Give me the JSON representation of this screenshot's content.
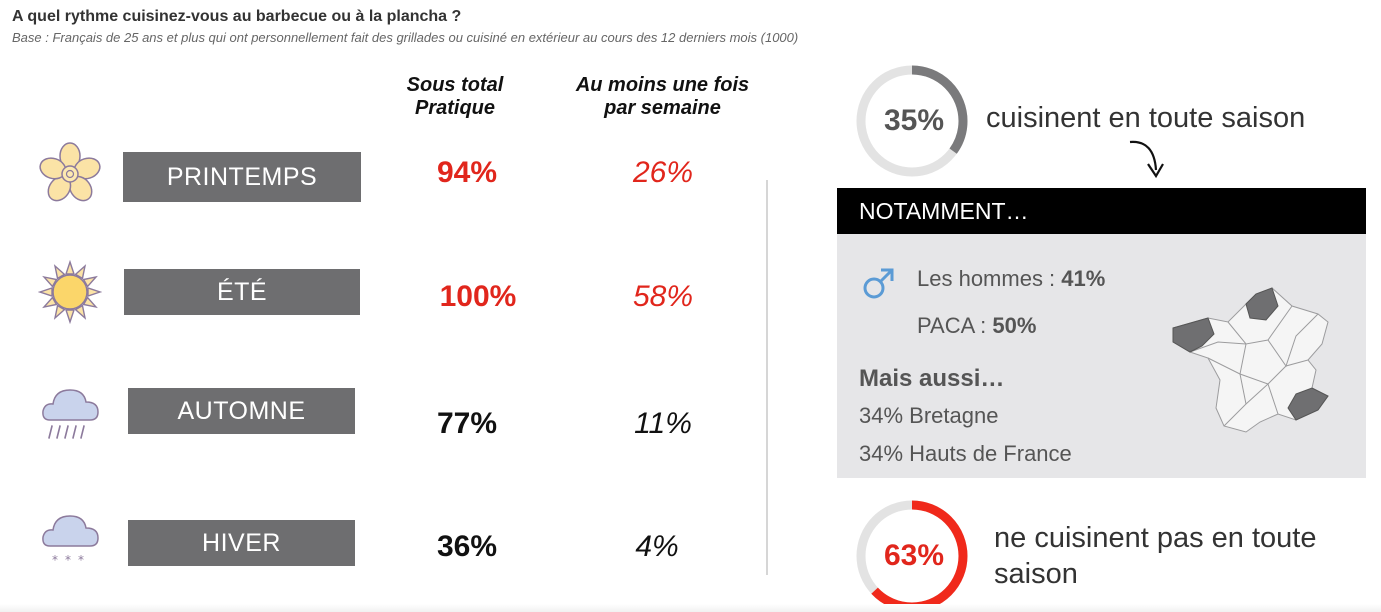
{
  "header": {
    "title": "A quel rythme cuisinez-vous au barbecue ou à la plancha ?",
    "subtitle": "Base : Français de 25 ans et plus qui ont personnellement fait des grillades ou cuisiné en extérieur au cours des 12 derniers mois (1000)"
  },
  "columns": {
    "subtotal_line1": "Sous total",
    "subtotal_line2": "Pratique",
    "weekly_line1": "Au moins une fois",
    "weekly_line2": "par semaine"
  },
  "seasons": [
    {
      "label": "PRINTEMPS",
      "subtotal": "94%",
      "weekly": "26%",
      "icon": "flower-icon",
      "highlight": true
    },
    {
      "label": "ÉTÉ",
      "subtotal": "100%",
      "weekly": "58%",
      "icon": "sun-icon",
      "highlight": true
    },
    {
      "label": "AUTOMNE",
      "subtotal": "77%",
      "weekly": "11%",
      "icon": "rain-cloud-icon",
      "highlight": false
    },
    {
      "label": "HIVER",
      "subtotal": "36%",
      "weekly": "4%",
      "icon": "snow-cloud-icon",
      "highlight": false
    }
  ],
  "all_season": {
    "percent": "35%",
    "value": 0.35,
    "text": "cuisinent en toute saison",
    "color": "#7a7a7c"
  },
  "not_all_season": {
    "percent": "63%",
    "value": 0.63,
    "text_line1": "ne cuisinent pas en toute",
    "text_line2": "saison",
    "color": "#f0291b"
  },
  "panel": {
    "heading": "NOTAMMENT…",
    "men_label": "Les hommes : ",
    "men_value": "41%",
    "paca_label": "PACA : ",
    "paca_value": "50%",
    "also_heading": "Mais aussi…",
    "also_1": "34% Bretagne",
    "also_2": "34% Hauts de France",
    "icon": "male-symbol-icon"
  },
  "colors": {
    "label_bg": "#6e6e70",
    "highlight_red": "#e1261c",
    "panel_bg": "#e6e6e8",
    "map_highlight": "#6f6f71",
    "male_icon": "#5b9bd5"
  }
}
